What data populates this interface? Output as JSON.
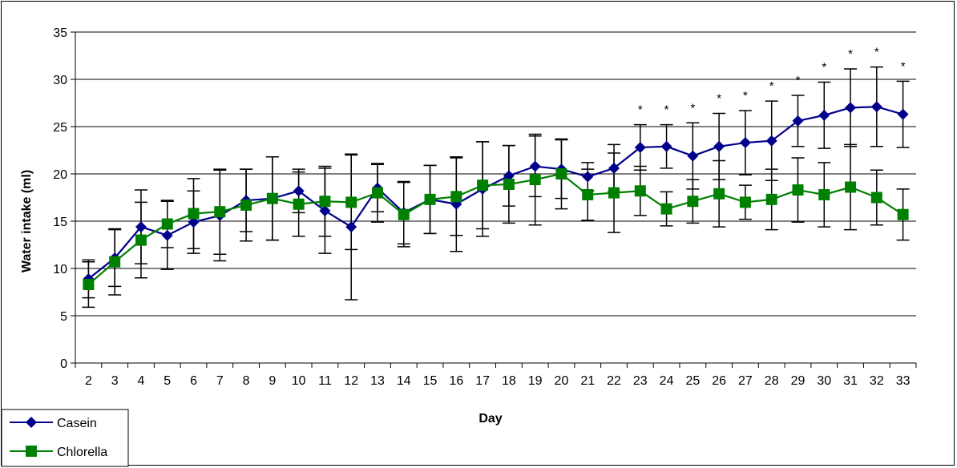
{
  "chart_data": {
    "type": "line",
    "xlabel": "Day",
    "ylabel": "Water intake (ml)",
    "ylim": [
      0,
      35
    ],
    "yticks": [
      "0",
      "5",
      "10",
      "15",
      "20",
      "25",
      "30",
      "35"
    ],
    "categories": [
      "2",
      "3",
      "4",
      "5",
      "6",
      "7",
      "8",
      "9",
      "10",
      "11",
      "12",
      "13",
      "14",
      "15",
      "16",
      "17",
      "18",
      "19",
      "20",
      "21",
      "22",
      "23",
      "24",
      "25",
      "26",
      "27",
      "28",
      "29",
      "30",
      "31",
      "32",
      "33"
    ],
    "grid": "horizontal",
    "legend_position": "bottom-left",
    "series": [
      {
        "name": "Casein",
        "color": "#00008B",
        "marker": "diamond",
        "values": [
          8.9,
          11.1,
          14.4,
          13.5,
          14.9,
          15.6,
          17.2,
          17.4,
          18.2,
          16.1,
          14.4,
          18.5,
          15.9,
          17.3,
          16.8,
          18.4,
          19.8,
          20.8,
          20.5,
          19.7,
          20.6,
          22.8,
          22.9,
          21.9,
          22.9,
          23.3,
          23.5,
          25.6,
          26.2,
          27.0,
          27.1,
          26.3
        ],
        "errors": [
          2.0,
          3.0,
          3.9,
          3.6,
          3.3,
          4.8,
          3.3,
          4.4,
          2.3,
          4.5,
          7.7,
          2.5,
          3.3,
          3.6,
          5.0,
          5.0,
          3.2,
          3.2,
          3.1,
          1.5,
          2.5,
          2.4,
          2.3,
          3.5,
          3.5,
          3.4,
          4.2,
          2.7,
          3.5,
          4.1,
          4.2,
          3.5
        ]
      },
      {
        "name": "Chlorella",
        "color": "#008000",
        "marker": "square",
        "values": [
          8.3,
          10.7,
          13.0,
          14.7,
          15.8,
          16.0,
          16.7,
          17.4,
          16.8,
          17.1,
          17.0,
          18.0,
          15.7,
          17.3,
          17.6,
          18.8,
          18.9,
          19.4,
          20.0,
          17.8,
          18.0,
          18.2,
          16.3,
          17.1,
          17.9,
          17.0,
          17.3,
          18.3,
          17.8,
          18.6,
          17.5,
          15.7
        ],
        "errors": [
          2.4,
          3.5,
          4.0,
          2.5,
          3.7,
          4.5,
          3.8,
          4.4,
          3.4,
          3.7,
          5.0,
          3.1,
          3.4,
          3.6,
          4.1,
          4.6,
          4.1,
          4.8,
          3.7,
          2.7,
          4.2,
          2.6,
          1.8,
          2.3,
          3.5,
          1.8,
          3.2,
          3.4,
          3.4,
          4.5,
          2.9,
          2.7
        ]
      }
    ],
    "significance_marks": {
      "symbol": "*",
      "days": [
        "23",
        "24",
        "25",
        "26",
        "27",
        "28",
        "29",
        "30",
        "31",
        "32",
        "33"
      ]
    }
  }
}
